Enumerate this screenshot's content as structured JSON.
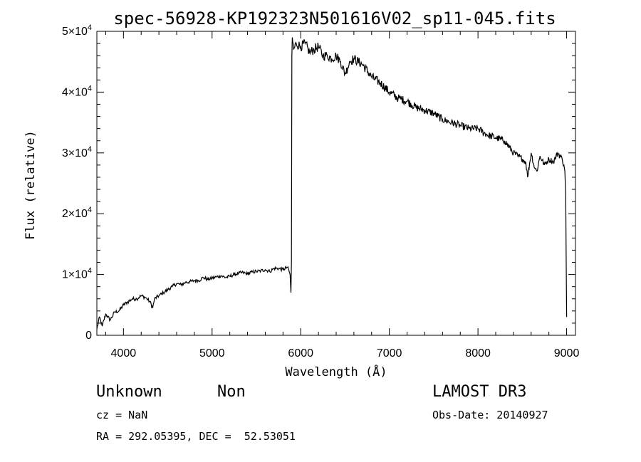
{
  "chart_data": {
    "type": "line",
    "title": "spec-56928-KP192323N501616V02_sp11-045.fits",
    "xlabel": "Wavelength (Å)",
    "ylabel": "Flux (relative)",
    "xlim": [
      3700,
      9100
    ],
    "ylim": [
      0,
      50000
    ],
    "xticks": [
      4000,
      5000,
      6000,
      7000,
      8000,
      9000
    ],
    "yticks": [
      0,
      10000,
      20000,
      30000,
      40000,
      50000
    ],
    "ytick_labels": [
      {
        "mant": "0",
        "exp": ""
      },
      {
        "mant": "1×10",
        "exp": "4"
      },
      {
        "mant": "2×10",
        "exp": "4"
      },
      {
        "mant": "3×10",
        "exp": "4"
      },
      {
        "mant": "4×10",
        "exp": "4"
      },
      {
        "mant": "5×10",
        "exp": "4"
      }
    ],
    "grid": false,
    "series": [
      {
        "x": [
          3700,
          3730,
          3760,
          3800,
          3850,
          3900,
          3950,
          4000,
          4050,
          4100,
          4150,
          4200,
          4250,
          4300,
          4330,
          4350,
          4400,
          4450,
          4500,
          4550,
          4600,
          4650,
          4700,
          4750,
          4800,
          4850,
          4900,
          4950,
          5000,
          5050,
          5100,
          5150,
          5200,
          5250,
          5300,
          5350,
          5400,
          5450,
          5500,
          5550,
          5600,
          5650,
          5700,
          5750,
          5800,
          5850,
          5870,
          5880,
          5890,
          5895,
          5900,
          5905,
          5920,
          5950,
          6000,
          6050,
          6100,
          6150,
          6200,
          6250,
          6300,
          6350,
          6400,
          6450,
          6500,
          6530,
          6550,
          6600,
          6700,
          6800,
          6900,
          7000,
          7100,
          7200,
          7300,
          7400,
          7500,
          7600,
          7700,
          7800,
          7900,
          8000,
          8100,
          8200,
          8300,
          8400,
          8450,
          8500,
          8540,
          8560,
          8600,
          8640,
          8665,
          8700,
          8750,
          8800,
          8850,
          8900,
          8950,
          8970,
          8980,
          8990,
          9000
        ],
        "y": [
          1000,
          3000,
          1500,
          3500,
          2500,
          3800,
          4000,
          5000,
          5500,
          6000,
          6000,
          6500,
          6200,
          5500,
          4500,
          6000,
          6500,
          7000,
          7500,
          8000,
          8500,
          8300,
          8700,
          8800,
          9000,
          9000,
          9500,
          9200,
          9400,
          9600,
          9800,
          9500,
          9700,
          10000,
          10200,
          10300,
          10100,
          10400,
          10500,
          10600,
          10800,
          10500,
          11000,
          11000,
          10800,
          11200,
          10500,
          10000,
          7000,
          12000,
          46000,
          49000,
          47000,
          48000,
          47500,
          48000,
          46500,
          47000,
          47500,
          46000,
          46000,
          45500,
          46000,
          45000,
          43000,
          44000,
          45000,
          45500,
          44500,
          42500,
          41500,
          40000,
          39000,
          38500,
          37500,
          37000,
          36500,
          35500,
          35000,
          34500,
          34000,
          34000,
          33000,
          32500,
          32000,
          30000,
          29500,
          29000,
          28500,
          26000,
          30000,
          27500,
          27000,
          29500,
          28000,
          29000,
          28500,
          30000,
          29000,
          28000,
          27000,
          23000,
          3000
        ]
      }
    ]
  },
  "info": {
    "object_type": "Unknown",
    "object_subclass": "Non",
    "survey": "LAMOST DR3",
    "cz": "cz = NaN",
    "obs_date": "Obs-Date: 20140927",
    "coords": "RA = 292.05395, DEC =  52.53051"
  }
}
